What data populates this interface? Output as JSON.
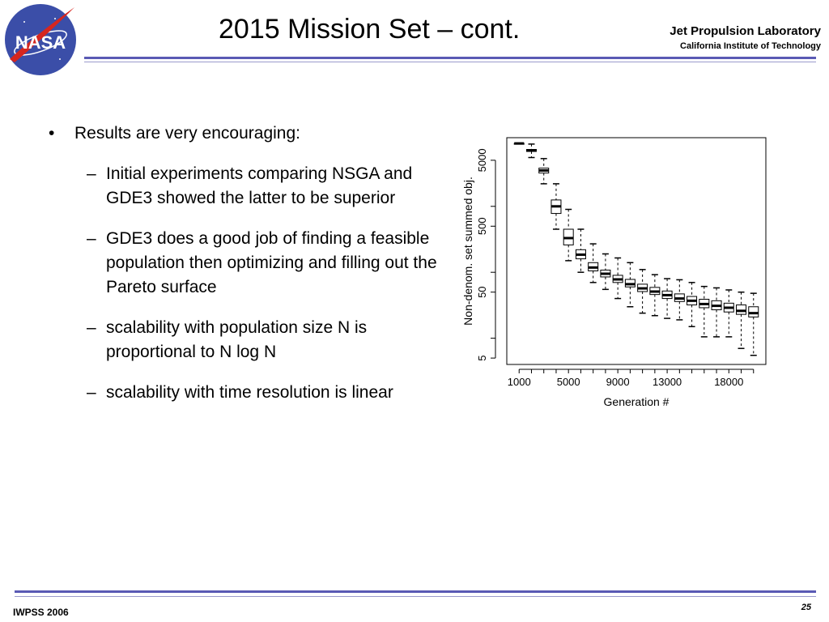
{
  "header": {
    "logo_text": "NASA",
    "title": "2015 Mission Set – cont.",
    "org_name": "Jet Propulsion Laboratory",
    "org_sub": "California Institute of Technology"
  },
  "content": {
    "bullet_main": "Results are very encouraging:",
    "bullet_mark": "•",
    "dash_mark": "–",
    "sub_bullets": [
      "Initial experiments comparing NSGA and GDE3 showed the latter to be superior",
      "GDE3 does a good job of finding a feasible population then optimizing and filling out the Pareto surface",
      "scalability with population size N is proportional to N log N",
      "scalability with time resolution is linear"
    ]
  },
  "chart_data": {
    "type": "boxplot",
    "xlabel": "Generation #",
    "ylabel": "Non-denom. set summed obj.",
    "y_scale": "log",
    "y_ticks": [
      5,
      50,
      500,
      5000
    ],
    "x_ticks": [
      1000,
      5000,
      9000,
      13000,
      18000
    ],
    "x": [
      1000,
      2000,
      3000,
      4000,
      5000,
      6000,
      7000,
      8000,
      9000,
      10000,
      11000,
      12000,
      13000,
      14000,
      15000,
      16000,
      17000,
      18000,
      19000,
      20000
    ],
    "boxes": [
      {
        "x": 1000,
        "min": 9000,
        "q1": 9000,
        "median": 9000,
        "q3": 9000,
        "max": 9000
      },
      {
        "x": 2000,
        "min": 5500,
        "q1": 6800,
        "median": 7000,
        "q3": 7300,
        "max": 8800
      },
      {
        "x": 3000,
        "min": 2200,
        "q1": 3200,
        "median": 3500,
        "q3": 3800,
        "max": 5300
      },
      {
        "x": 4000,
        "min": 450,
        "q1": 780,
        "median": 1000,
        "q3": 1250,
        "max": 2200
      },
      {
        "x": 5000,
        "min": 150,
        "q1": 260,
        "median": 330,
        "q3": 450,
        "max": 900
      },
      {
        "x": 6000,
        "min": 100,
        "q1": 160,
        "median": 185,
        "q3": 220,
        "max": 450
      },
      {
        "x": 7000,
        "min": 70,
        "q1": 105,
        "median": 118,
        "q3": 140,
        "max": 270
      },
      {
        "x": 8000,
        "min": 55,
        "q1": 85,
        "median": 95,
        "q3": 108,
        "max": 190
      },
      {
        "x": 9000,
        "min": 40,
        "q1": 70,
        "median": 78,
        "q3": 90,
        "max": 165
      },
      {
        "x": 10000,
        "min": 30,
        "q1": 60,
        "median": 66,
        "q3": 78,
        "max": 140
      },
      {
        "x": 11000,
        "min": 24,
        "q1": 51,
        "median": 57,
        "q3": 66,
        "max": 110
      },
      {
        "x": 12000,
        "min": 22,
        "q1": 46,
        "median": 51,
        "q3": 59,
        "max": 92
      },
      {
        "x": 13000,
        "min": 20,
        "q1": 40,
        "median": 45,
        "q3": 52,
        "max": 80
      },
      {
        "x": 14000,
        "min": 19,
        "q1": 36,
        "median": 40,
        "q3": 47,
        "max": 77
      },
      {
        "x": 15000,
        "min": 15,
        "q1": 32,
        "median": 37,
        "q3": 43,
        "max": 70
      },
      {
        "x": 16000,
        "min": 10.5,
        "q1": 29,
        "median": 33,
        "q3": 39,
        "max": 61
      },
      {
        "x": 17000,
        "min": 10.5,
        "q1": 27,
        "median": 31,
        "q3": 37,
        "max": 58
      },
      {
        "x": 18000,
        "min": 10.5,
        "q1": 25,
        "median": 29,
        "q3": 34,
        "max": 54
      },
      {
        "x": 19000,
        "min": 7,
        "q1": 23,
        "median": 26,
        "q3": 32,
        "max": 50
      },
      {
        "x": 20000,
        "min": 5.5,
        "q1": 21,
        "median": 24,
        "q3": 30,
        "max": 48
      }
    ]
  },
  "footer": {
    "left": "IWPSS 2006",
    "page": "25"
  },
  "colors": {
    "rule": "#5a5ab4",
    "logo_blue": "#3b4ea8",
    "logo_red": "#d6261f"
  }
}
